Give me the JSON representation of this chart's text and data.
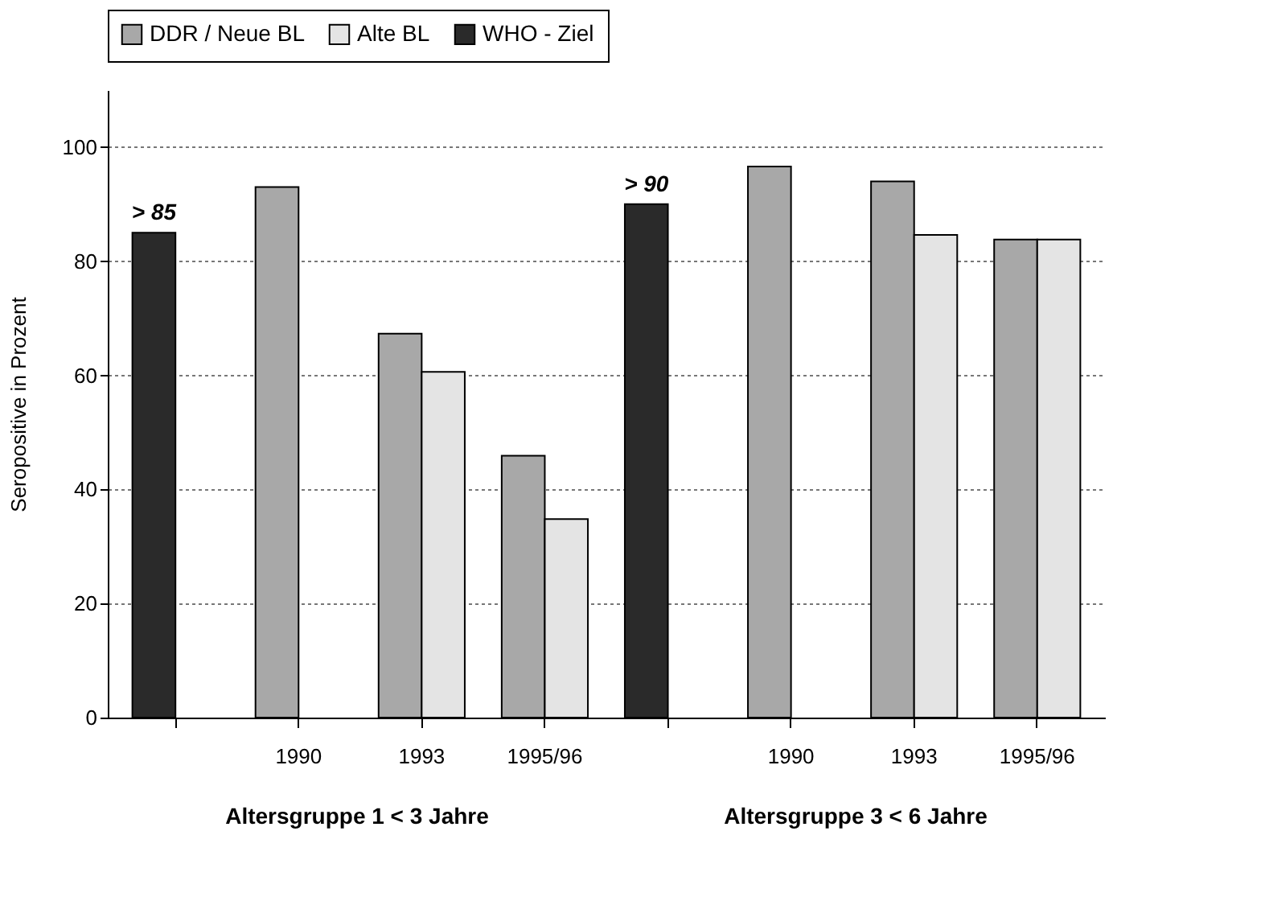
{
  "chart_data": {
    "type": "bar",
    "categories": [
      null,
      "1990",
      "1993",
      "1995/96",
      null,
      "1990",
      "1993",
      "1995/96"
    ],
    "ylabel": "Seropositive in Prozent",
    "series": [
      {
        "name": "DDR / Neue BL",
        "color": "#a8a8a8",
        "values": [
          null,
          93,
          67.3,
          45.9,
          null,
          96.6,
          94,
          83.8
        ]
      },
      {
        "name": "Alte BL",
        "color": "#e4e4e4",
        "values": [
          null,
          null,
          60.6,
          34.8,
          null,
          null,
          84.6,
          83.8
        ]
      },
      {
        "name": "WHO - Ziel",
        "color": "#2a2a2a",
        "values": [
          85,
          null,
          null,
          null,
          90,
          null,
          null,
          null
        ],
        "value_labels": [
          "> 85",
          null,
          null,
          null,
          "> 90",
          null,
          null,
          null
        ]
      }
    ],
    "ylim": [
      0,
      110
    ],
    "yticks": [
      0,
      20,
      40,
      60,
      80,
      100
    ],
    "grid": "y",
    "legend": "top",
    "annotations": [
      "Altersgruppe 1 < 3 Jahre",
      "Altersgruppe 3 < 6 Jahre"
    ]
  }
}
